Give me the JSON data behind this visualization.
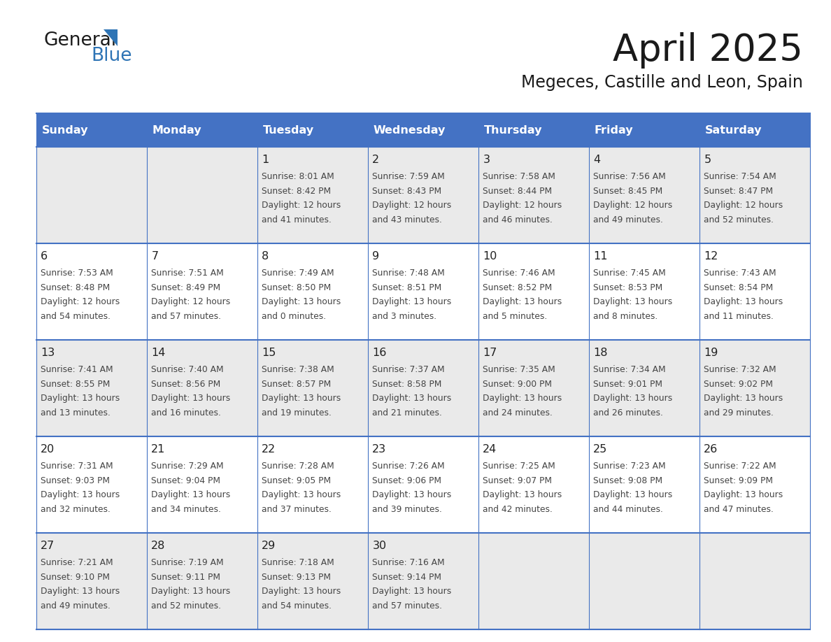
{
  "title": "April 2025",
  "subtitle": "Megeces, Castille and Leon, Spain",
  "days_of_week": [
    "Sunday",
    "Monday",
    "Tuesday",
    "Wednesday",
    "Thursday",
    "Friday",
    "Saturday"
  ],
  "header_bg": "#4472C4",
  "header_text_color": "#FFFFFF",
  "row_bg_even": "#EAEAEA",
  "row_bg_odd": "#FFFFFF",
  "border_color": "#4472C4",
  "text_color": "#444444",
  "day_number_color": "#222222",
  "general_color": "#1a1a1a",
  "blue_color": "#2E74B5",
  "logo_general_color": "#1a1a1a",
  "calendar": [
    [
      {
        "day": null,
        "data": null
      },
      {
        "day": null,
        "data": null
      },
      {
        "day": 1,
        "data": {
          "sunrise": "8:01 AM",
          "sunset": "8:42 PM",
          "daylight_h": "12 hours",
          "daylight_m": "and 41 minutes."
        }
      },
      {
        "day": 2,
        "data": {
          "sunrise": "7:59 AM",
          "sunset": "8:43 PM",
          "daylight_h": "12 hours",
          "daylight_m": "and 43 minutes."
        }
      },
      {
        "day": 3,
        "data": {
          "sunrise": "7:58 AM",
          "sunset": "8:44 PM",
          "daylight_h": "12 hours",
          "daylight_m": "and 46 minutes."
        }
      },
      {
        "day": 4,
        "data": {
          "sunrise": "7:56 AM",
          "sunset": "8:45 PM",
          "daylight_h": "12 hours",
          "daylight_m": "and 49 minutes."
        }
      },
      {
        "day": 5,
        "data": {
          "sunrise": "7:54 AM",
          "sunset": "8:47 PM",
          "daylight_h": "12 hours",
          "daylight_m": "and 52 minutes."
        }
      }
    ],
    [
      {
        "day": 6,
        "data": {
          "sunrise": "7:53 AM",
          "sunset": "8:48 PM",
          "daylight_h": "12 hours",
          "daylight_m": "and 54 minutes."
        }
      },
      {
        "day": 7,
        "data": {
          "sunrise": "7:51 AM",
          "sunset": "8:49 PM",
          "daylight_h": "12 hours",
          "daylight_m": "and 57 minutes."
        }
      },
      {
        "day": 8,
        "data": {
          "sunrise": "7:49 AM",
          "sunset": "8:50 PM",
          "daylight_h": "13 hours",
          "daylight_m": "and 0 minutes."
        }
      },
      {
        "day": 9,
        "data": {
          "sunrise": "7:48 AM",
          "sunset": "8:51 PM",
          "daylight_h": "13 hours",
          "daylight_m": "and 3 minutes."
        }
      },
      {
        "day": 10,
        "data": {
          "sunrise": "7:46 AM",
          "sunset": "8:52 PM",
          "daylight_h": "13 hours",
          "daylight_m": "and 5 minutes."
        }
      },
      {
        "day": 11,
        "data": {
          "sunrise": "7:45 AM",
          "sunset": "8:53 PM",
          "daylight_h": "13 hours",
          "daylight_m": "and 8 minutes."
        }
      },
      {
        "day": 12,
        "data": {
          "sunrise": "7:43 AM",
          "sunset": "8:54 PM",
          "daylight_h": "13 hours",
          "daylight_m": "and 11 minutes."
        }
      }
    ],
    [
      {
        "day": 13,
        "data": {
          "sunrise": "7:41 AM",
          "sunset": "8:55 PM",
          "daylight_h": "13 hours",
          "daylight_m": "and 13 minutes."
        }
      },
      {
        "day": 14,
        "data": {
          "sunrise": "7:40 AM",
          "sunset": "8:56 PM",
          "daylight_h": "13 hours",
          "daylight_m": "and 16 minutes."
        }
      },
      {
        "day": 15,
        "data": {
          "sunrise": "7:38 AM",
          "sunset": "8:57 PM",
          "daylight_h": "13 hours",
          "daylight_m": "and 19 minutes."
        }
      },
      {
        "day": 16,
        "data": {
          "sunrise": "7:37 AM",
          "sunset": "8:58 PM",
          "daylight_h": "13 hours",
          "daylight_m": "and 21 minutes."
        }
      },
      {
        "day": 17,
        "data": {
          "sunrise": "7:35 AM",
          "sunset": "9:00 PM",
          "daylight_h": "13 hours",
          "daylight_m": "and 24 minutes."
        }
      },
      {
        "day": 18,
        "data": {
          "sunrise": "7:34 AM",
          "sunset": "9:01 PM",
          "daylight_h": "13 hours",
          "daylight_m": "and 26 minutes."
        }
      },
      {
        "day": 19,
        "data": {
          "sunrise": "7:32 AM",
          "sunset": "9:02 PM",
          "daylight_h": "13 hours",
          "daylight_m": "and 29 minutes."
        }
      }
    ],
    [
      {
        "day": 20,
        "data": {
          "sunrise": "7:31 AM",
          "sunset": "9:03 PM",
          "daylight_h": "13 hours",
          "daylight_m": "and 32 minutes."
        }
      },
      {
        "day": 21,
        "data": {
          "sunrise": "7:29 AM",
          "sunset": "9:04 PM",
          "daylight_h": "13 hours",
          "daylight_m": "and 34 minutes."
        }
      },
      {
        "day": 22,
        "data": {
          "sunrise": "7:28 AM",
          "sunset": "9:05 PM",
          "daylight_h": "13 hours",
          "daylight_m": "and 37 minutes."
        }
      },
      {
        "day": 23,
        "data": {
          "sunrise": "7:26 AM",
          "sunset": "9:06 PM",
          "daylight_h": "13 hours",
          "daylight_m": "and 39 minutes."
        }
      },
      {
        "day": 24,
        "data": {
          "sunrise": "7:25 AM",
          "sunset": "9:07 PM",
          "daylight_h": "13 hours",
          "daylight_m": "and 42 minutes."
        }
      },
      {
        "day": 25,
        "data": {
          "sunrise": "7:23 AM",
          "sunset": "9:08 PM",
          "daylight_h": "13 hours",
          "daylight_m": "and 44 minutes."
        }
      },
      {
        "day": 26,
        "data": {
          "sunrise": "7:22 AM",
          "sunset": "9:09 PM",
          "daylight_h": "13 hours",
          "daylight_m": "and 47 minutes."
        }
      }
    ],
    [
      {
        "day": 27,
        "data": {
          "sunrise": "7:21 AM",
          "sunset": "9:10 PM",
          "daylight_h": "13 hours",
          "daylight_m": "and 49 minutes."
        }
      },
      {
        "day": 28,
        "data": {
          "sunrise": "7:19 AM",
          "sunset": "9:11 PM",
          "daylight_h": "13 hours",
          "daylight_m": "and 52 minutes."
        }
      },
      {
        "day": 29,
        "data": {
          "sunrise": "7:18 AM",
          "sunset": "9:13 PM",
          "daylight_h": "13 hours",
          "daylight_m": "and 54 minutes."
        }
      },
      {
        "day": 30,
        "data": {
          "sunrise": "7:16 AM",
          "sunset": "9:14 PM",
          "daylight_h": "13 hours",
          "daylight_m": "and 57 minutes."
        }
      },
      {
        "day": null,
        "data": null
      },
      {
        "day": null,
        "data": null
      },
      {
        "day": null,
        "data": null
      }
    ]
  ]
}
